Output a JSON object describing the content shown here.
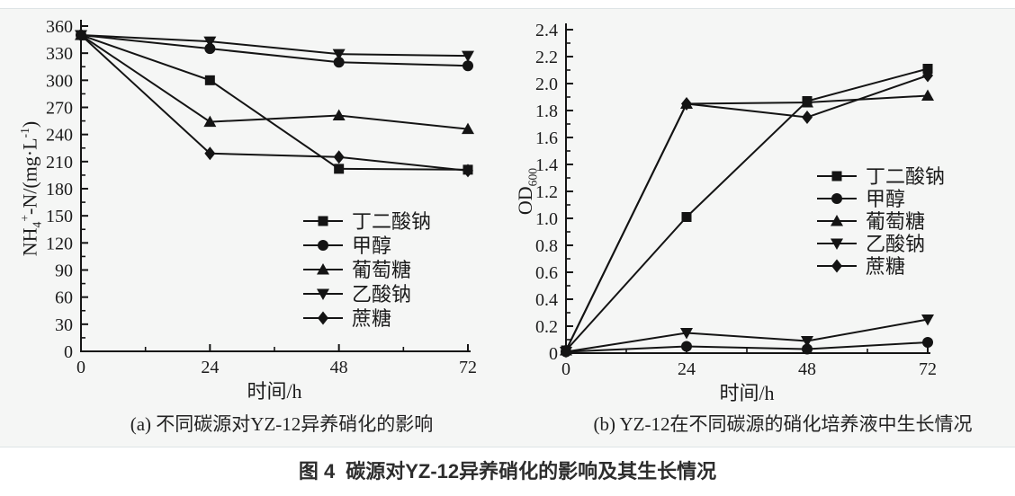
{
  "figure": {
    "caption": {
      "label": "图 4",
      "text": "碳源对YZ-12异养硝化的影响及其生长情况"
    },
    "colors": {
      "panel_bg": "#f5f6f5",
      "panel_border": "#dee4e6",
      "line": "#141414",
      "text": "#1c1c1c",
      "caption_text": "#2d2d2d"
    }
  },
  "chart_data": [
    {
      "type": "line",
      "panel": "a",
      "caption": "(a) 不同碳源对YZ-12异养硝化的影响",
      "xlabel": "时间/h",
      "ylabel_segments": [
        [
          "t",
          "NH"
        ],
        [
          "sub",
          "4"
        ],
        [
          "sup",
          "+"
        ],
        [
          "t",
          "-N/(mg·L"
        ],
        [
          "sup",
          "-1"
        ],
        [
          "t",
          ")"
        ]
      ],
      "x": [
        0,
        24,
        48,
        72
      ],
      "xticks": [
        0,
        24,
        48,
        72
      ],
      "xlim": [
        0,
        72
      ],
      "ylim": [
        0,
        360
      ],
      "ytick_step": 30,
      "y_decimals": 0,
      "grid": false,
      "legend_position": "inside-lower-right",
      "series": [
        {
          "name": "丁二酸钠",
          "marker": "square",
          "values": [
            350,
            300,
            202,
            201
          ]
        },
        {
          "name": "甲醇",
          "marker": "circle",
          "values": [
            350,
            335,
            320,
            316
          ]
        },
        {
          "name": "葡萄糖",
          "marker": "triangle-up",
          "values": [
            350,
            254,
            261,
            246
          ]
        },
        {
          "name": "乙酸钠",
          "marker": "triangle-down",
          "values": [
            350,
            343,
            329,
            327
          ]
        },
        {
          "name": "蔗糖",
          "marker": "diamond",
          "values": [
            350,
            219,
            215,
            200
          ]
        }
      ]
    },
    {
      "type": "line",
      "panel": "b",
      "caption": "(b) YZ-12在不同碳源的硝化培养液中生长情况",
      "xlabel": "时间/h",
      "ylabel_segments": [
        [
          "t",
          "OD"
        ],
        [
          "sub",
          "600"
        ]
      ],
      "x": [
        0,
        24,
        48,
        72
      ],
      "xticks": [
        0,
        24,
        48,
        72
      ],
      "xlim": [
        0,
        72
      ],
      "ylim": [
        0,
        2.4
      ],
      "ytick_step": 0.2,
      "y_decimals": 1,
      "grid": false,
      "legend_position": "inside-middle-right",
      "series": [
        {
          "name": "丁二酸钠",
          "marker": "square",
          "values": [
            0.02,
            1.01,
            1.87,
            2.11
          ]
        },
        {
          "name": "甲醇",
          "marker": "circle",
          "values": [
            0.01,
            0.05,
            0.03,
            0.08
          ]
        },
        {
          "name": "葡萄糖",
          "marker": "triangle-up",
          "values": [
            0.02,
            1.85,
            1.86,
            1.91
          ]
        },
        {
          "name": "乙酸钠",
          "marker": "triangle-down",
          "values": [
            0.01,
            0.15,
            0.09,
            0.25
          ]
        },
        {
          "name": "蔗糖",
          "marker": "diamond",
          "values": [
            0.02,
            1.85,
            1.75,
            2.06
          ]
        }
      ]
    }
  ]
}
